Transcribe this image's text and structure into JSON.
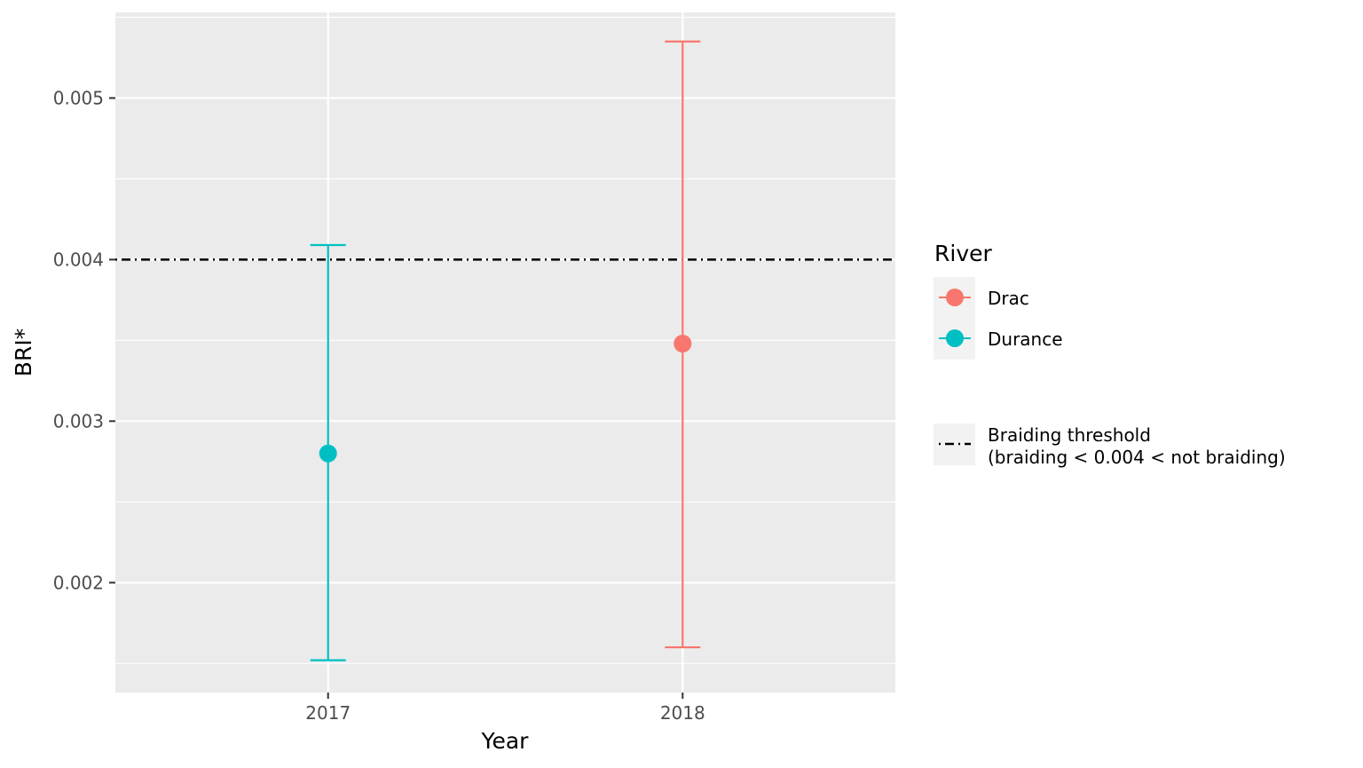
{
  "chart_data": {
    "type": "errorbar",
    "xlabel": "Year",
    "ylabel": "BRI*",
    "categories": [
      "2017",
      "2018"
    ],
    "ylim": [
      0.00132,
      0.00553
    ],
    "yticks": [
      0.002,
      0.003,
      0.004,
      0.005
    ],
    "ytick_labels": [
      "0.002",
      "0.003",
      "0.004",
      "0.005"
    ],
    "series": [
      {
        "name": "Drac",
        "color": "#F8766D",
        "x": "2018",
        "y": 0.00348,
        "ymin": 0.0016,
        "ymax": 0.00535
      },
      {
        "name": "Durance",
        "color": "#00BFC4",
        "x": "2017",
        "y": 0.0028,
        "ymin": 0.00152,
        "ymax": 0.00409
      }
    ],
    "hline": {
      "y": 0.004,
      "style": "dotdash",
      "color": "#000000"
    },
    "legend": {
      "title": "River",
      "placement": "right",
      "items": [
        "Drac",
        "Durance"
      ],
      "threshold_label_1": "Braiding threshold",
      "threshold_label_2": "(braiding < 0.004 < not braiding)"
    },
    "grid": true,
    "panel_background": "#EBEBEB",
    "grid_color": "#FFFFFF"
  }
}
